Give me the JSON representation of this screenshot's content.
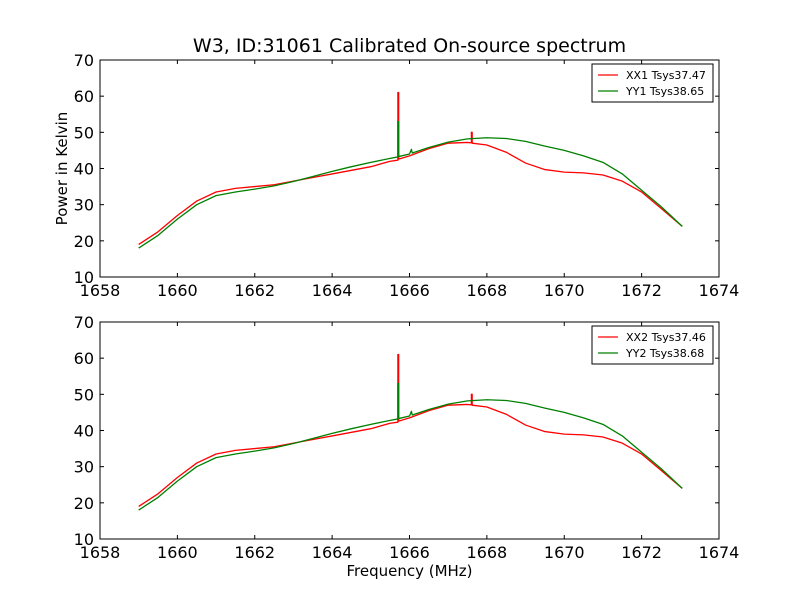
{
  "chart_data": [
    {
      "type": "line",
      "title": "W3, ID:31061 Calibrated On-source spectrum",
      "xlabel": "",
      "ylabel": "Power in Kelvin",
      "xlim": [
        1658,
        1674
      ],
      "ylim": [
        10,
        70
      ],
      "xticks": [
        1658,
        1660,
        1662,
        1664,
        1666,
        1668,
        1670,
        1672,
        1674
      ],
      "yticks": [
        10,
        20,
        30,
        40,
        50,
        60,
        70
      ],
      "legend_position": "top-right",
      "series": [
        {
          "name": "XX1 Tsys37.47",
          "color": "#ff0000",
          "x": [
            1659.0,
            1659.5,
            1660.0,
            1660.5,
            1661.0,
            1661.5,
            1662.0,
            1662.5,
            1663.0,
            1663.5,
            1664.0,
            1664.5,
            1665.0,
            1665.5,
            1665.7,
            1665.7,
            1665.72,
            1665.72,
            1666.0,
            1666.5,
            1667.0,
            1667.5,
            1667.6,
            1667.6,
            1667.62,
            1667.62,
            1668.0,
            1668.5,
            1669.0,
            1669.5,
            1670.0,
            1670.5,
            1671.0,
            1671.5,
            1672.0,
            1672.5,
            1673.05
          ],
          "y": [
            19,
            22.5,
            27,
            31,
            33.5,
            34.5,
            35,
            35.5,
            36.5,
            37.5,
            38.5,
            39.5,
            40.5,
            42,
            42.3,
            61,
            61,
            42.6,
            43.5,
            45.5,
            47,
            47.2,
            47.1,
            50,
            50,
            47,
            46.5,
            44.5,
            41.5,
            39.7,
            39,
            38.8,
            38.2,
            36.5,
            33.5,
            29,
            24
          ]
        },
        {
          "name": "YY1 Tsys38.65",
          "color": "#008000",
          "x": [
            1659.0,
            1659.5,
            1660.0,
            1660.5,
            1661.0,
            1661.5,
            1662.0,
            1662.5,
            1663.0,
            1663.5,
            1664.0,
            1664.5,
            1665.0,
            1665.5,
            1665.7,
            1665.7,
            1665.72,
            1665.72,
            1666.0,
            1666.05,
            1666.07,
            1666.1,
            1666.5,
            1667.0,
            1667.5,
            1668.0,
            1668.5,
            1669.0,
            1669.5,
            1670.0,
            1670.5,
            1671.0,
            1671.5,
            1672.0,
            1672.5,
            1673.05
          ],
          "y": [
            18,
            21.5,
            26,
            30,
            32.5,
            33.5,
            34.3,
            35.2,
            36.4,
            37.8,
            39.2,
            40.5,
            41.7,
            42.8,
            43.2,
            53,
            53,
            43.3,
            44,
            45.3,
            44.3,
            44.4,
            45.8,
            47.3,
            48.2,
            48.5,
            48.3,
            47.5,
            46.2,
            45,
            43.5,
            41.7,
            38.5,
            34,
            29.5,
            24
          ]
        }
      ]
    },
    {
      "type": "line",
      "title": "",
      "xlabel": "Frequency (MHz)",
      "ylabel": "",
      "xlim": [
        1658,
        1674
      ],
      "ylim": [
        10,
        70
      ],
      "xticks": [
        1658,
        1660,
        1662,
        1664,
        1666,
        1668,
        1670,
        1672,
        1674
      ],
      "yticks": [
        10,
        20,
        30,
        40,
        50,
        60,
        70
      ],
      "legend_position": "top-right",
      "series": [
        {
          "name": "XX2 Tsys37.46",
          "color": "#ff0000",
          "x": [
            1659.0,
            1659.5,
            1660.0,
            1660.5,
            1661.0,
            1661.5,
            1662.0,
            1662.5,
            1663.0,
            1663.5,
            1664.0,
            1664.5,
            1665.0,
            1665.5,
            1665.7,
            1665.7,
            1665.72,
            1665.72,
            1666.0,
            1666.5,
            1667.0,
            1667.5,
            1667.6,
            1667.6,
            1667.62,
            1667.62,
            1668.0,
            1668.5,
            1669.0,
            1669.5,
            1670.0,
            1670.5,
            1671.0,
            1671.5,
            1672.0,
            1672.5,
            1673.05
          ],
          "y": [
            19,
            22.5,
            27,
            31,
            33.5,
            34.5,
            35,
            35.5,
            36.5,
            37.5,
            38.5,
            39.5,
            40.5,
            42,
            42.3,
            61,
            61,
            42.6,
            43.5,
            45.5,
            47,
            47.2,
            47.1,
            50,
            50,
            47,
            46.5,
            44.5,
            41.5,
            39.7,
            39,
            38.8,
            38.2,
            36.5,
            33.5,
            29,
            24
          ]
        },
        {
          "name": "YY2 Tsys38.68",
          "color": "#008000",
          "x": [
            1659.0,
            1659.5,
            1660.0,
            1660.5,
            1661.0,
            1661.5,
            1662.0,
            1662.5,
            1663.0,
            1663.5,
            1664.0,
            1664.5,
            1665.0,
            1665.5,
            1665.7,
            1665.7,
            1665.72,
            1665.72,
            1666.0,
            1666.05,
            1666.07,
            1666.1,
            1666.5,
            1667.0,
            1667.5,
            1668.0,
            1668.5,
            1669.0,
            1669.5,
            1670.0,
            1670.5,
            1671.0,
            1671.5,
            1672.0,
            1672.5,
            1673.05
          ],
          "y": [
            18,
            21.5,
            26,
            30,
            32.5,
            33.5,
            34.3,
            35.2,
            36.4,
            37.8,
            39.2,
            40.5,
            41.7,
            42.8,
            43.2,
            53,
            53,
            43.3,
            44,
            45.3,
            44.3,
            44.4,
            45.8,
            47.3,
            48.2,
            48.5,
            48.3,
            47.5,
            46.2,
            45,
            43.5,
            41.7,
            38.5,
            34,
            29.5,
            24
          ]
        }
      ]
    }
  ]
}
